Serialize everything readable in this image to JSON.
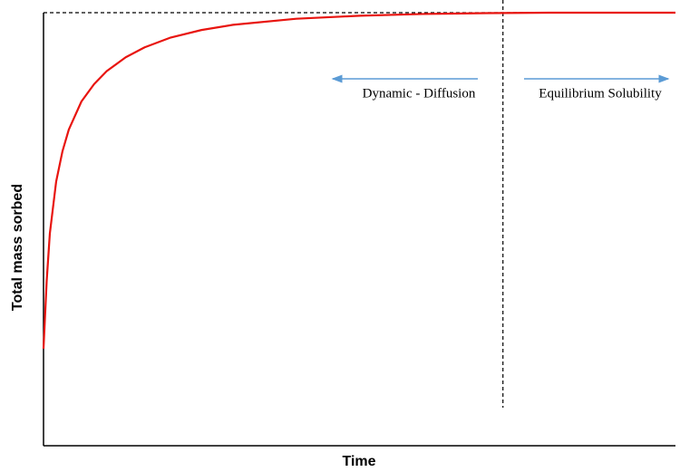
{
  "chart_data": {
    "type": "line",
    "x_label": "Time",
    "y_label": "Total mass sorbed",
    "xlim": [
      0,
      100
    ],
    "ylim": [
      0,
      100
    ],
    "series": [
      {
        "color": "#e8140f",
        "x": [
          0,
          0.5,
          1,
          2,
          3,
          4,
          6,
          8,
          10,
          13,
          16,
          20,
          25,
          30,
          40,
          50,
          60,
          70,
          80,
          90,
          100
        ],
        "values": [
          22.4,
          38,
          49,
          61,
          68,
          73,
          79.5,
          83.5,
          86.5,
          89.7,
          92,
          94.2,
          96,
          97.2,
          98.6,
          99.3,
          99.7,
          99.9,
          100,
          100,
          100
        ]
      }
    ],
    "hline": 100,
    "vline": 72.7,
    "annotations": [
      "Dynamic - Diffusion",
      "Equilibrium Solubility"
    ]
  }
}
